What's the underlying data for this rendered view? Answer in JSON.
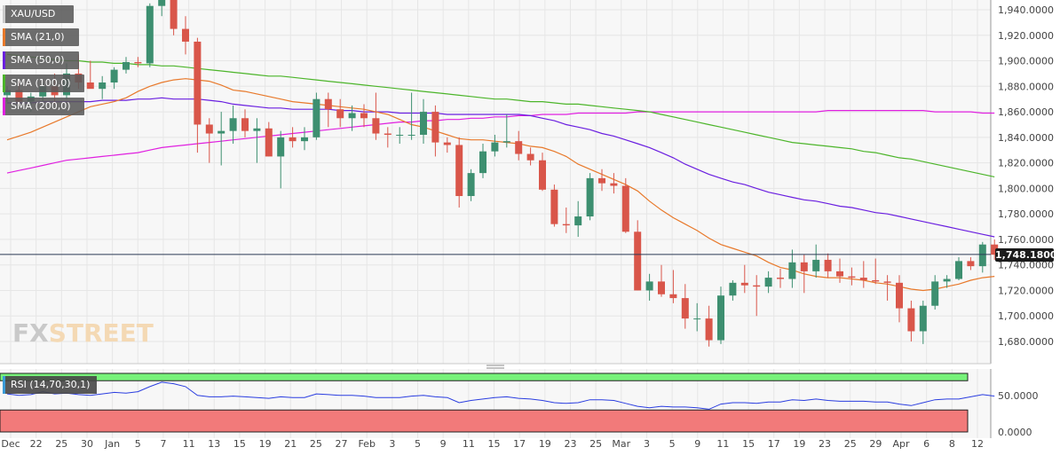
{
  "legend": [
    {
      "label": "XAU/USD",
      "color": "#cccccc"
    },
    {
      "label": "SMA (21,0)",
      "color": "#e8792b"
    },
    {
      "label": "SMA (50,0)",
      "color": "#6a1fe0"
    },
    {
      "label": "SMA (100,0)",
      "color": "#4cb52a"
    },
    {
      "label": "SMA (200,0)",
      "color": "#e020e0"
    }
  ],
  "logo": {
    "part1": "FX",
    "part2": "STREET"
  },
  "last_price": "1,748.1800",
  "rsi_label": "RSI (14,70,30,1)",
  "colors": {
    "up": "#3d8f70",
    "down": "#d9564a",
    "grid": "#e6e6e6",
    "rsi_over": "#77f27a",
    "rsi_under": "#f27a7a",
    "rsi_line": "#2a3de0"
  },
  "chart_data": [
    {
      "type": "candlestick",
      "title": "",
      "ylim": [
        1670,
        1945
      ],
      "y_ticks": [
        1680,
        1700,
        1720,
        1740,
        1760,
        1780,
        1800,
        1820,
        1840,
        1860,
        1880,
        1900,
        1920,
        1940
      ],
      "y_tick_labels": [
        "1,680.0000",
        "1,700.0000",
        "1,720.0000",
        "1,740.0000",
        "1,760.0000",
        "1,780.0000",
        "1,800.0000",
        "1,820.0000",
        "1,840.0000",
        "1,860.0000",
        "1,880.0000",
        "1,900.0000",
        "1,920.0000",
        "1,940.0000"
      ],
      "x_tick_labels": [
        "Dec",
        "22",
        "25",
        "30",
        "Jan",
        "5",
        "7",
        "11",
        "13",
        "15",
        "19",
        "21",
        "25",
        "27",
        "Feb",
        "3",
        "5",
        "9",
        "11",
        "15",
        "17",
        "19",
        "23",
        "25",
        "Mar",
        "3",
        "5",
        "9",
        "11",
        "15",
        "17",
        "19",
        "23",
        "25",
        "29",
        "Apr",
        "6",
        "8",
        "12"
      ],
      "current_price": 1748.18,
      "ohlc": [
        [
          1873,
          1880,
          1868,
          1877
        ],
        [
          1877,
          1885,
          1865,
          1868
        ],
        [
          1868,
          1875,
          1860,
          1872
        ],
        [
          1872,
          1883,
          1868,
          1880
        ],
        [
          1880,
          1890,
          1866,
          1873
        ],
        [
          1873,
          1898,
          1870,
          1890
        ],
        [
          1890,
          1905,
          1878,
          1883
        ],
        [
          1883,
          1900,
          1880,
          1878
        ],
        [
          1878,
          1888,
          1870,
          1883
        ],
        [
          1883,
          1895,
          1878,
          1893
        ],
        [
          1893,
          1903,
          1890,
          1899
        ],
        [
          1899,
          1903,
          1895,
          1898
        ],
        [
          1898,
          1945,
          1895,
          1943
        ],
        [
          1943,
          1960,
          1935,
          1950
        ],
        [
          1950,
          1962,
          1920,
          1925
        ],
        [
          1925,
          1935,
          1905,
          1915
        ],
        [
          1915,
          1918,
          1828,
          1850
        ],
        [
          1850,
          1855,
          1820,
          1843
        ],
        [
          1843,
          1860,
          1818,
          1845
        ],
        [
          1845,
          1865,
          1835,
          1855
        ],
        [
          1855,
          1862,
          1840,
          1845
        ],
        [
          1845,
          1855,
          1820,
          1847
        ],
        [
          1847,
          1852,
          1825,
          1825
        ],
        [
          1825,
          1845,
          1800,
          1840
        ],
        [
          1840,
          1848,
          1832,
          1837
        ],
        [
          1837,
          1848,
          1830,
          1840
        ],
        [
          1840,
          1875,
          1838,
          1870
        ],
        [
          1870,
          1875,
          1848,
          1862
        ],
        [
          1862,
          1870,
          1848,
          1855
        ],
        [
          1855,
          1865,
          1845,
          1859
        ],
        [
          1859,
          1866,
          1848,
          1855
        ],
        [
          1855,
          1875,
          1838,
          1843
        ],
        [
          1843,
          1848,
          1832,
          1842
        ],
        [
          1842,
          1848,
          1835,
          1842
        ],
        [
          1842,
          1875,
          1838,
          1842
        ],
        [
          1842,
          1870,
          1835,
          1860
        ],
        [
          1860,
          1865,
          1825,
          1836
        ],
        [
          1836,
          1840,
          1828,
          1834
        ],
        [
          1834,
          1840,
          1785,
          1794
        ],
        [
          1794,
          1815,
          1790,
          1812
        ],
        [
          1812,
          1835,
          1808,
          1829
        ],
        [
          1829,
          1842,
          1825,
          1836
        ],
        [
          1836,
          1858,
          1832,
          1837
        ],
        [
          1837,
          1845,
          1822,
          1827
        ],
        [
          1827,
          1832,
          1818,
          1822
        ],
        [
          1822,
          1828,
          1798,
          1799
        ],
        [
          1799,
          1803,
          1770,
          1772
        ],
        [
          1772,
          1785,
          1765,
          1771
        ],
        [
          1771,
          1790,
          1762,
          1778
        ],
        [
          1778,
          1812,
          1775,
          1808
        ],
        [
          1808,
          1815,
          1798,
          1804
        ],
        [
          1804,
          1812,
          1796,
          1802
        ],
        [
          1802,
          1808,
          1765,
          1766
        ],
        [
          1766,
          1775,
          1720,
          1720
        ],
        [
          1720,
          1733,
          1712,
          1727
        ],
        [
          1727,
          1740,
          1715,
          1717
        ],
        [
          1717,
          1736,
          1710,
          1714
        ],
        [
          1714,
          1725,
          1690,
          1698
        ],
        [
          1698,
          1710,
          1688,
          1698
        ],
        [
          1698,
          1708,
          1676,
          1681
        ],
        [
          1681,
          1723,
          1678,
          1716
        ],
        [
          1716,
          1728,
          1712,
          1726
        ],
        [
          1726,
          1740,
          1718,
          1724
        ],
        [
          1724,
          1732,
          1700,
          1723
        ],
        [
          1723,
          1735,
          1718,
          1730
        ],
        [
          1730,
          1737,
          1722,
          1729
        ],
        [
          1729,
          1752,
          1722,
          1742
        ],
        [
          1742,
          1748,
          1718,
          1735
        ],
        [
          1735,
          1756,
          1730,
          1744
        ],
        [
          1744,
          1749,
          1730,
          1735
        ],
        [
          1735,
          1745,
          1726,
          1731
        ],
        [
          1731,
          1738,
          1724,
          1730
        ],
        [
          1730,
          1743,
          1722,
          1728
        ],
        [
          1728,
          1745,
          1725,
          1727
        ],
        [
          1727,
          1732,
          1712,
          1726
        ],
        [
          1726,
          1732,
          1695,
          1706
        ],
        [
          1706,
          1712,
          1680,
          1688
        ],
        [
          1688,
          1712,
          1678,
          1708
        ],
        [
          1708,
          1732,
          1705,
          1727
        ],
        [
          1727,
          1732,
          1722,
          1729
        ],
        [
          1729,
          1746,
          1728,
          1743
        ],
        [
          1743,
          1746,
          1736,
          1739
        ],
        [
          1739,
          1758,
          1734,
          1756
        ],
        [
          1756,
          1760,
          1744,
          1748
        ]
      ],
      "sma_21": [
        1838,
        1841,
        1844,
        1848,
        1852,
        1856,
        1860,
        1864,
        1866,
        1868,
        1871,
        1876,
        1880,
        1883,
        1885,
        1886,
        1885,
        1884,
        1881,
        1877,
        1876,
        1874,
        1872,
        1870,
        1868,
        1867,
        1866,
        1865,
        1864,
        1863,
        1862,
        1860,
        1858,
        1854,
        1850,
        1848,
        1845,
        1842,
        1839,
        1838,
        1838,
        1837,
        1836,
        1835,
        1833,
        1832,
        1829,
        1825,
        1819,
        1815,
        1811,
        1807,
        1803,
        1798,
        1790,
        1783,
        1777,
        1772,
        1767,
        1761,
        1756,
        1753,
        1750,
        1747,
        1742,
        1738,
        1736,
        1733,
        1731,
        1730,
        1730,
        1729,
        1728,
        1726,
        1725,
        1723,
        1721,
        1720,
        1721,
        1723,
        1725,
        1728,
        1730,
        1731
      ],
      "sma_50": [
        1867,
        1867,
        1867,
        1868,
        1868,
        1868,
        1868,
        1868,
        1869,
        1869,
        1869,
        1870,
        1870,
        1871,
        1870,
        1870,
        1870,
        1869,
        1868,
        1866,
        1865,
        1864,
        1863,
        1863,
        1862,
        1862,
        1862,
        1862,
        1861,
        1861,
        1860,
        1860,
        1860,
        1859,
        1859,
        1859,
        1859,
        1858,
        1858,
        1858,
        1858,
        1858,
        1858,
        1858,
        1857,
        1855,
        1853,
        1850,
        1848,
        1846,
        1843,
        1841,
        1838,
        1835,
        1832,
        1828,
        1824,
        1819,
        1815,
        1811,
        1808,
        1805,
        1803,
        1800,
        1797,
        1795,
        1793,
        1791,
        1790,
        1788,
        1786,
        1785,
        1783,
        1781,
        1780,
        1778,
        1776,
        1774,
        1772,
        1770,
        1768,
        1766,
        1764,
        1762
      ],
      "sma_100": [
        1905,
        1904,
        1903,
        1902,
        1901,
        1900,
        1900,
        1899,
        1899,
        1898,
        1898,
        1897,
        1897,
        1896,
        1896,
        1895,
        1894,
        1893,
        1892,
        1891,
        1890,
        1889,
        1888,
        1888,
        1887,
        1886,
        1885,
        1884,
        1883,
        1882,
        1881,
        1880,
        1879,
        1878,
        1877,
        1876,
        1875,
        1874,
        1873,
        1872,
        1871,
        1870,
        1870,
        1869,
        1868,
        1868,
        1867,
        1866,
        1866,
        1865,
        1864,
        1863,
        1862,
        1861,
        1860,
        1858,
        1856,
        1854,
        1852,
        1850,
        1848,
        1846,
        1844,
        1842,
        1840,
        1838,
        1836,
        1835,
        1834,
        1833,
        1832,
        1831,
        1829,
        1828,
        1826,
        1824,
        1823,
        1821,
        1819,
        1817,
        1815,
        1813,
        1811,
        1809
      ],
      "sma_200": [
        1812,
        1814,
        1816,
        1818,
        1820,
        1822,
        1823,
        1824,
        1825,
        1826,
        1827,
        1828,
        1830,
        1832,
        1833,
        1834,
        1835,
        1836,
        1837,
        1838,
        1839,
        1840,
        1841,
        1842,
        1843,
        1844,
        1845,
        1846,
        1847,
        1848,
        1849,
        1850,
        1851,
        1852,
        1852,
        1853,
        1853,
        1854,
        1854,
        1855,
        1855,
        1856,
        1856,
        1857,
        1857,
        1858,
        1858,
        1858,
        1859,
        1859,
        1859,
        1859,
        1859,
        1860,
        1860,
        1860,
        1860,
        1860,
        1860,
        1860,
        1860,
        1860,
        1860,
        1860,
        1860,
        1860,
        1860,
        1860,
        1860,
        1861,
        1861,
        1861,
        1861,
        1861,
        1861,
        1861,
        1861,
        1861,
        1860,
        1860,
        1860,
        1860,
        1859,
        1859
      ]
    },
    {
      "type": "line",
      "title": "",
      "ylim": [
        0,
        80
      ],
      "y_ticks": [
        0,
        50
      ],
      "y_tick_labels": [
        "0.0000",
        "50.0000"
      ],
      "overbought": 70,
      "oversold": 30,
      "rsi": [
        52,
        50,
        51,
        55,
        52,
        53,
        51,
        50,
        52,
        54,
        53,
        55,
        62,
        68,
        66,
        62,
        50,
        48,
        48,
        49,
        48,
        47,
        46,
        48,
        47,
        47,
        52,
        51,
        50,
        50,
        49,
        47,
        47,
        47,
        49,
        50,
        48,
        47,
        40,
        43,
        45,
        47,
        48,
        46,
        45,
        43,
        40,
        39,
        40,
        44,
        44,
        43,
        39,
        35,
        33,
        35,
        34,
        34,
        33,
        31,
        38,
        40,
        40,
        39,
        41,
        41,
        44,
        43,
        45,
        43,
        42,
        42,
        42,
        41,
        41,
        38,
        36,
        40,
        44,
        45,
        45,
        48,
        51,
        49
      ]
    }
  ]
}
